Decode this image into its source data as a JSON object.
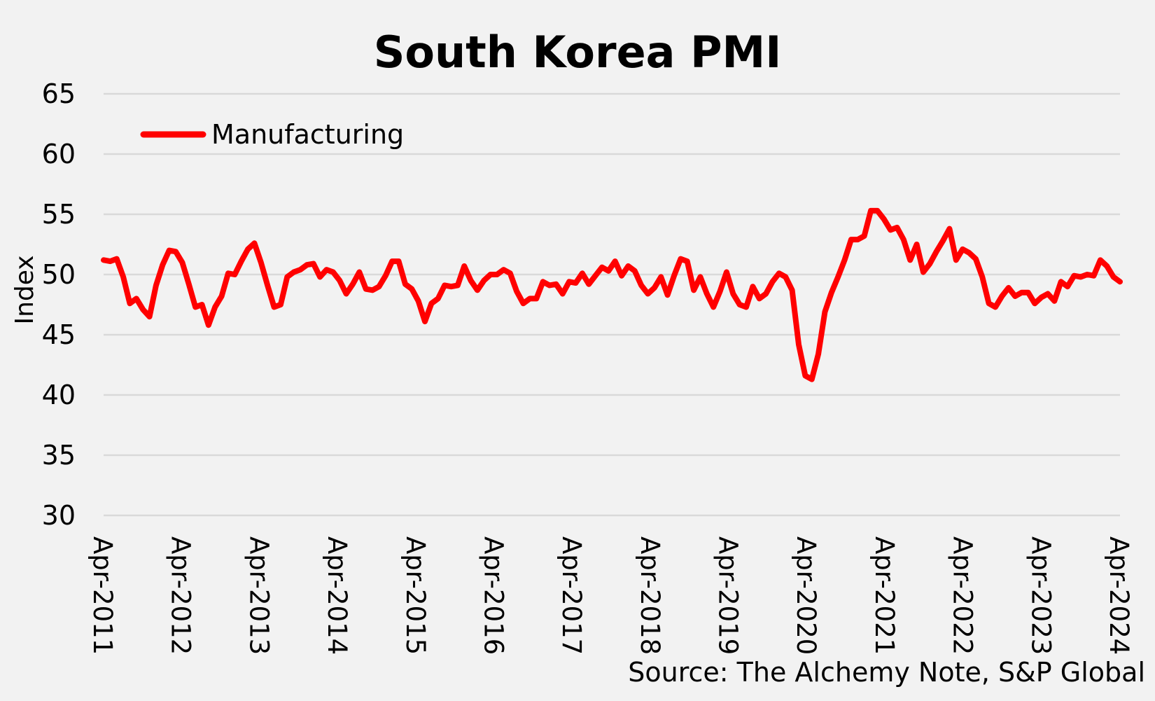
{
  "chart_data": {
    "type": "line",
    "title": "South Korea PMI",
    "ylabel": "Index",
    "xlabel": "",
    "source": "Source: The Alchemy Note, S&P Global",
    "ylim": [
      30,
      65
    ],
    "yticks": [
      30,
      35,
      40,
      45,
      50,
      55,
      60,
      65
    ],
    "x_start": "2011-04",
    "x_end": "2024-04",
    "xtick_labels": [
      "Apr-2011",
      "Apr-2012",
      "Apr-2013",
      "Apr-2014",
      "Apr-2015",
      "Apr-2016",
      "Apr-2017",
      "Apr-2018",
      "Apr-2019",
      "Apr-2020",
      "Apr-2021",
      "Apr-2022",
      "Apr-2023",
      "Apr-2024"
    ],
    "grid": true,
    "legend_position": "top-left",
    "series": [
      {
        "name": "Manufacturing",
        "color": "#ff0000",
        "values": [
          51.2,
          51.1,
          51.3,
          49.8,
          47.6,
          48.0,
          47.1,
          46.5,
          49.1,
          50.8,
          52.0,
          51.9,
          51.0,
          49.2,
          47.3,
          47.5,
          45.8,
          47.3,
          48.2,
          50.1,
          50.0,
          51.1,
          52.1,
          52.6,
          51.0,
          49.1,
          47.3,
          47.5,
          49.8,
          50.2,
          50.4,
          50.8,
          50.9,
          49.8,
          50.4,
          50.2,
          49.5,
          48.4,
          49.2,
          50.2,
          48.8,
          48.7,
          49.0,
          49.9,
          51.1,
          51.1,
          49.2,
          48.8,
          47.8,
          46.1,
          47.6,
          48.0,
          49.1,
          49.0,
          49.1,
          50.7,
          49.5,
          48.7,
          49.5,
          50.0,
          50.0,
          50.4,
          50.1,
          48.6,
          47.6,
          48.0,
          48.0,
          49.4,
          49.1,
          49.2,
          48.4,
          49.4,
          49.3,
          50.1,
          49.2,
          49.9,
          50.6,
          50.3,
          51.1,
          49.9,
          50.7,
          50.3,
          49.1,
          48.4,
          48.9,
          49.8,
          48.3,
          49.9,
          51.3,
          51.1,
          48.7,
          49.8,
          48.4,
          47.3,
          48.6,
          50.2,
          48.4,
          47.5,
          47.3,
          49.0,
          48.0,
          48.4,
          49.4,
          50.1,
          49.8,
          48.7,
          44.2,
          41.6,
          41.3,
          43.4,
          46.9,
          48.5,
          49.8,
          51.2,
          52.9,
          52.9,
          53.2,
          55.3,
          55.3,
          54.6,
          53.7,
          53.9,
          52.9,
          51.2,
          52.5,
          50.2,
          50.9,
          51.9,
          52.8,
          53.8,
          51.2,
          52.1,
          51.8,
          51.3,
          49.8,
          47.6,
          47.3,
          48.2,
          48.9,
          48.2,
          48.5,
          48.5,
          47.6,
          48.1,
          48.4,
          47.8,
          49.4,
          49.0,
          49.9,
          49.8,
          50.0,
          49.9,
          51.2,
          50.7,
          49.8,
          49.4
        ]
      }
    ]
  }
}
